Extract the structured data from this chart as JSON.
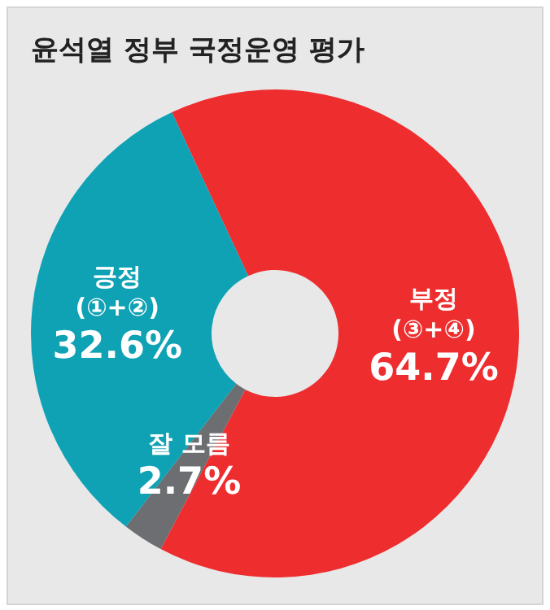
{
  "chart_data": {
    "type": "donut",
    "title": "윤석열 정부 국정운영 평가",
    "categories": [
      "부정 (③+④)",
      "잘 모름",
      "긍정 (①+②)"
    ],
    "values": [
      64.7,
      2.7,
      32.6
    ],
    "colors": [
      "#ee2d2f",
      "#6d6e71",
      "#0ea2b4"
    ],
    "value_labels": [
      "64.7%",
      "2.7%",
      "32.6%"
    ],
    "legend": false
  }
}
